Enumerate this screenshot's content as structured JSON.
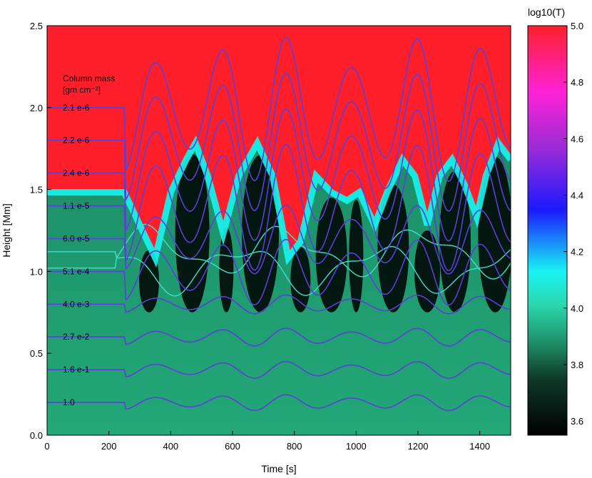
{
  "chart_data": {
    "type": "heatmap",
    "title": "",
    "xlabel": "Time [s]",
    "ylabel": "Height [Mm]",
    "xlim": [
      0,
      1500
    ],
    "ylim": [
      0,
      2.5
    ],
    "x_ticks": [
      "0",
      "200",
      "400",
      "600",
      "800",
      "1000",
      "1200",
      "1400"
    ],
    "y_ticks": [
      "0.0",
      "0.5",
      "1.0",
      "1.5",
      "2.0",
      "2.5"
    ],
    "colorbar": {
      "label": "log10(T)",
      "range": [
        3.55,
        5.0
      ],
      "ticks": [
        "3.6",
        "3.8",
        "4.0",
        "4.2",
        "4.4",
        "4.6",
        "4.8",
        "5.0"
      ]
    },
    "colors": {
      "corona": "#ff1f2a",
      "transition": "#14f5f0",
      "chromosphere": "#1d8a64",
      "cool": "#000000",
      "contour": "#5b3fd6",
      "contour_aux": "#40e0c8"
    },
    "annotation": {
      "title_line1": "Column mass",
      "title_line2": "[gm cm⁻²]"
    },
    "contours": [
      {
        "label": "2.1 e-6",
        "base_height": 2.0
      },
      {
        "label": "2.2 e-6",
        "base_height": 1.8
      },
      {
        "label": "2.4 e-6",
        "base_height": 1.6
      },
      {
        "label": "1.1 e-5",
        "base_height": 1.4
      },
      {
        "label": "6.0 e-5",
        "base_height": 1.2
      },
      {
        "label": "5.1 e-4",
        "base_height": 1.0
      },
      {
        "label": "4.0 e-3",
        "base_height": 0.8
      },
      {
        "label": "2.7 e-2",
        "base_height": 0.6
      },
      {
        "label": "1.6 e-1",
        "base_height": 0.4
      },
      {
        "label": "1.0",
        "base_height": 0.2
      }
    ],
    "transition_region_height": {
      "time": [
        0,
        250,
        300,
        350,
        400,
        450,
        480,
        520,
        570,
        620,
        680,
        730,
        780,
        820,
        870,
        920,
        970,
        1010,
        1060,
        1100,
        1150,
        1190,
        1230,
        1270,
        1310,
        1350,
        1390,
        1420,
        1460,
        1500
      ],
      "height": [
        1.5,
        1.5,
        1.3,
        1.1,
        1.5,
        1.7,
        1.8,
        1.6,
        1.25,
        1.6,
        1.8,
        1.6,
        1.1,
        1.2,
        1.6,
        1.5,
        1.45,
        1.5,
        1.3,
        1.5,
        1.7,
        1.6,
        1.3,
        1.6,
        1.7,
        1.55,
        1.35,
        1.6,
        1.8,
        1.7
      ]
    }
  }
}
